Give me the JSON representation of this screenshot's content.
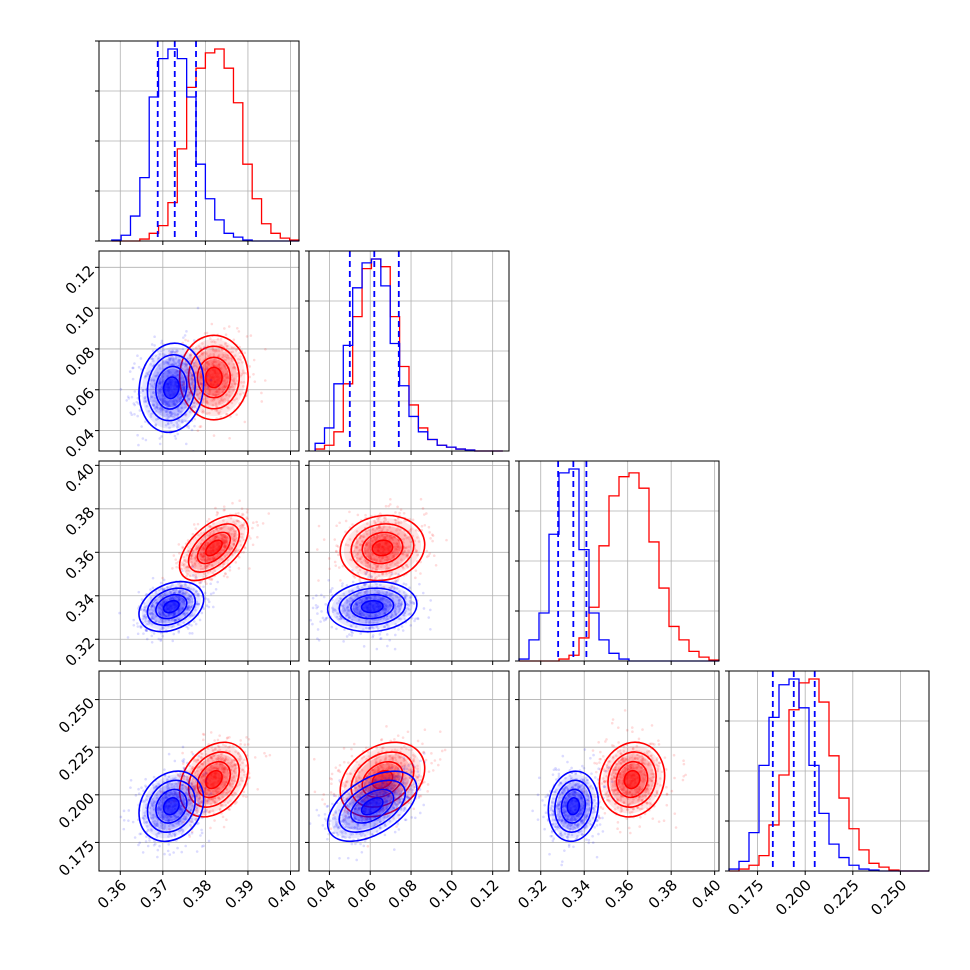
{
  "chart_data": {
    "type": "corner",
    "title": "",
    "colors": {
      "blue": "#0000ff",
      "red": "#ff0000",
      "grid": "#b0b0b0",
      "frame": "#000000"
    },
    "grid": true,
    "params": [
      {
        "range": [
          0.355,
          0.402
        ],
        "ticks": [
          "0.36",
          "0.37",
          "0.38",
          "0.39",
          "0.40"
        ],
        "tick_values": [
          0.36,
          0.37,
          0.38,
          0.39,
          0.4
        ]
      },
      {
        "range": [
          0.03,
          0.128
        ],
        "ticks": [
          "0.04",
          "0.06",
          "0.08",
          "0.10",
          "0.12"
        ],
        "tick_values": [
          0.04,
          0.06,
          0.08,
          0.1,
          0.12
        ]
      },
      {
        "range": [
          0.31,
          0.402
        ],
        "ticks": [
          "0.32",
          "0.34",
          "0.36",
          "0.38",
          "0.40"
        ],
        "tick_values": [
          0.32,
          0.34,
          0.36,
          0.38,
          0.4
        ]
      },
      {
        "range": [
          0.16,
          0.265
        ],
        "ticks": [
          "0.175",
          "0.200",
          "0.225",
          "0.250"
        ],
        "tick_values": [
          0.175,
          0.2,
          0.225,
          0.25
        ]
      }
    ],
    "series": [
      {
        "color": "blue",
        "mean": [
          0.372,
          0.061,
          0.335,
          0.194
        ],
        "std": [
          0.0033,
          0.0095,
          0.005,
          0.008
        ],
        "quantile_lines": [
          [
            0.3688,
            0.3728,
            0.3778
          ],
          [
            0.05,
            0.062,
            0.074
          ],
          [
            0.328,
            0.335,
            0.341
          ],
          [
            0.183,
            0.194,
            0.205
          ]
        ],
        "corr": {
          "0-1": 0.1,
          "0-2": 0.3,
          "0-3": 0.2,
          "1-2": 0.1,
          "1-3": 0.5,
          "2-3": 0.1
        }
      },
      {
        "color": "red",
        "mean": [
          0.382,
          0.066,
          0.362,
          0.208
        ],
        "std": [
          0.0035,
          0.009,
          0.0065,
          0.0085
        ],
        "corr": {
          "0-1": 0.0,
          "0-2": 0.55,
          "0-3": 0.3,
          "1-2": 0.1,
          "1-3": 0.3,
          "2-3": 0.1
        }
      }
    ],
    "histograms": [
      {
        "param": 0,
        "bins": 20,
        "range": [
          0.358,
          0.402
        ],
        "blue": [
          0.005,
          0.03,
          0.13,
          0.33,
          0.75,
          0.95,
          1.0,
          0.95,
          0.75,
          0.4,
          0.22,
          0.11,
          0.04,
          0.02,
          0.005,
          0,
          0,
          0,
          0,
          0
        ],
        "red": [
          0,
          0,
          0,
          0.01,
          0.04,
          0.08,
          0.2,
          0.48,
          0.8,
          0.9,
          0.98,
          1.0,
          0.9,
          0.72,
          0.4,
          0.22,
          0.09,
          0.04,
          0.015,
          0.005
        ]
      },
      {
        "param": 1,
        "bins": 20,
        "range": [
          0.033,
          0.125
        ],
        "blue": [
          0.04,
          0.12,
          0.35,
          0.55,
          0.85,
          0.98,
          1.0,
          0.86,
          0.56,
          0.34,
          0.18,
          0.1,
          0.06,
          0.03,
          0.02,
          0.01,
          0.005,
          0,
          0,
          0
        ],
        "red": [
          0.01,
          0.03,
          0.1,
          0.35,
          0.7,
          0.95,
          1.0,
          0.96,
          0.7,
          0.44,
          0.24,
          0.12,
          0.06,
          0.03,
          0.02,
          0.01,
          0.005,
          0,
          0,
          0
        ]
      },
      {
        "param": 2,
        "bins": 20,
        "range": [
          0.31,
          0.402
        ],
        "blue": [
          0.01,
          0.11,
          0.25,
          0.66,
          0.98,
          1.0,
          0.58,
          0.25,
          0.11,
          0.04,
          0.01,
          0,
          0,
          0,
          0,
          0,
          0,
          0,
          0,
          0
        ],
        "red": [
          0,
          0,
          0,
          0,
          0.01,
          0.03,
          0.12,
          0.28,
          0.6,
          0.86,
          0.96,
          0.98,
          0.9,
          0.62,
          0.38,
          0.18,
          0.11,
          0.05,
          0.02,
          0.005
        ]
      },
      {
        "param": 3,
        "bins": 20,
        "range": [
          0.16,
          0.265
        ],
        "blue": [
          0.01,
          0.05,
          0.2,
          0.55,
          0.8,
          0.97,
          1.0,
          0.85,
          0.55,
          0.3,
          0.14,
          0.07,
          0.03,
          0.01,
          0.005,
          0,
          0,
          0,
          0,
          0
        ],
        "red": [
          0,
          0.01,
          0.03,
          0.08,
          0.24,
          0.5,
          0.84,
          0.98,
          1.0,
          0.88,
          0.6,
          0.38,
          0.22,
          0.11,
          0.04,
          0.02,
          0.005,
          0,
          0,
          0
        ]
      }
    ]
  }
}
